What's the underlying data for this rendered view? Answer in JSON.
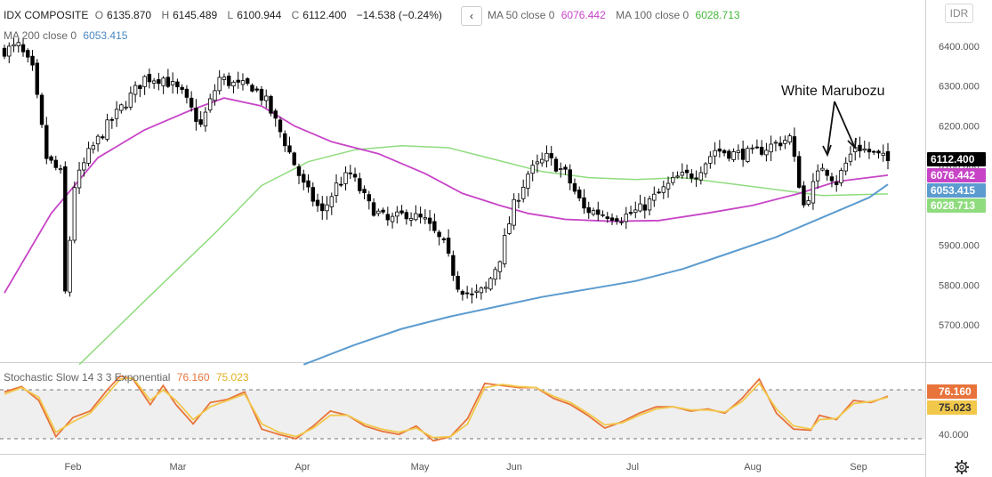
{
  "legend": {
    "symbol": "IDX COMPOSITE",
    "o_label": "O",
    "o": "6135.870",
    "h_label": "H",
    "h": "6145.489",
    "l_label": "L",
    "l": "6100.944",
    "c_label": "C",
    "c": "6112.400",
    "change": "−14.538 (−0.24%)",
    "collapse_glyph": "‹",
    "ma50_label": "MA 50 close 0",
    "ma50_value": "6076.442",
    "ma100_label": "MA 100 close 0",
    "ma100_value": "6028.713",
    "ma200_label": "MA 200 close 0",
    "ma200_value": "6053.415"
  },
  "currency_button": "IDR",
  "settings_icon": "gear-icon",
  "stoch_legend": {
    "label": "Stochastic Slow 14 3 3 Exponential",
    "k": "76.160",
    "d": "75.023"
  },
  "colors": {
    "up": "#ffffff",
    "down": "#000000",
    "ma50": "#c744c7",
    "ma100": "#8fdc7e",
    "ma200": "#5b9bcf",
    "stoch_k": "#e8743b",
    "stoch_d": "#f2c84b"
  },
  "chart_data": [
    {
      "type": "candlestick",
      "title": "IDX COMPOSITE",
      "x_axis_labels": [
        "Feb",
        "Mar",
        "Apr",
        "May",
        "Jun",
        "Jul",
        "Aug",
        "Sep"
      ],
      "ylim": [
        5600,
        6450
      ],
      "y_ticks": [
        5700,
        5800,
        5900,
        6000,
        6100,
        6200,
        6300,
        6400
      ],
      "y_tick_labels": [
        "5700.000",
        "5800.000",
        "5900.000",
        "6000.000",
        "6100.000",
        "6200.000",
        "6300.000",
        "6400.000"
      ],
      "price_labels": [
        {
          "name": "close",
          "value": 6112.4,
          "text": "6112.400",
          "color": "#000000"
        },
        {
          "name": "ma50",
          "value": 6076.442,
          "text": "6076.442",
          "color": "#c744c7"
        },
        {
          "name": "ma200",
          "value": 6053.415,
          "text": "6053.415",
          "color": "#5b9bcf"
        },
        {
          "name": "ma100",
          "value": 6028.713,
          "text": "6028.713",
          "color": "#8fdc7e"
        }
      ],
      "annotation": "White Marubozu",
      "anchors": [
        [
          0,
          6390
        ],
        [
          3,
          6400
        ],
        [
          6,
          6340
        ],
        [
          9,
          6120
        ],
        [
          12,
          6080
        ],
        [
          13,
          5780
        ],
        [
          15,
          6050
        ],
        [
          18,
          6130
        ],
        [
          22,
          6200
        ],
        [
          26,
          6260
        ],
        [
          30,
          6320
        ],
        [
          34,
          6320
        ],
        [
          38,
          6280
        ],
        [
          42,
          6200
        ],
        [
          46,
          6320
        ],
        [
          50,
          6300
        ],
        [
          53,
          6300
        ],
        [
          56,
          6260
        ],
        [
          60,
          6160
        ],
        [
          64,
          6050
        ],
        [
          68,
          5980
        ],
        [
          71,
          6050
        ],
        [
          74,
          6080
        ],
        [
          78,
          6000
        ],
        [
          82,
          5960
        ],
        [
          86,
          5980
        ],
        [
          90,
          5960
        ],
        [
          94,
          5900
        ],
        [
          97,
          5800
        ],
        [
          100,
          5770
        ],
        [
          103,
          5790
        ],
        [
          106,
          5870
        ],
        [
          109,
          6000
        ],
        [
          112,
          6080
        ],
        [
          116,
          6120
        ],
        [
          120,
          6080
        ],
        [
          124,
          5990
        ],
        [
          128,
          5980
        ],
        [
          132,
          5970
        ],
        [
          136,
          5990
        ],
        [
          140,
          6030
        ],
        [
          144,
          6070
        ],
        [
          148,
          6080
        ],
        [
          152,
          6140
        ],
        [
          156,
          6130
        ],
        [
          160,
          6130
        ],
        [
          164,
          6150
        ],
        [
          168,
          6170
        ],
        [
          171,
          6000
        ],
        [
          175,
          6100
        ],
        [
          178,
          6060
        ],
        [
          182,
          6150
        ],
        [
          186,
          6130
        ],
        [
          189,
          6112.4
        ]
      ],
      "ma50": [
        [
          0,
          5780
        ],
        [
          10,
          5980
        ],
        [
          20,
          6120
        ],
        [
          30,
          6190
        ],
        [
          40,
          6240
        ],
        [
          47,
          6270
        ],
        [
          55,
          6250
        ],
        [
          62,
          6200
        ],
        [
          70,
          6160
        ],
        [
          80,
          6130
        ],
        [
          90,
          6080
        ],
        [
          98,
          6030
        ],
        [
          106,
          6000
        ],
        [
          112,
          5980
        ],
        [
          120,
          5965
        ],
        [
          130,
          5960
        ],
        [
          140,
          5962
        ],
        [
          150,
          5980
        ],
        [
          160,
          6000
        ],
        [
          170,
          6030
        ],
        [
          178,
          6060
        ],
        [
          189,
          6076
        ]
      ],
      "ma100": [
        [
          16,
          5600
        ],
        [
          30,
          5760
        ],
        [
          45,
          5930
        ],
        [
          55,
          6050
        ],
        [
          65,
          6110
        ],
        [
          75,
          6140
        ],
        [
          85,
          6150
        ],
        [
          95,
          6145
        ],
        [
          105,
          6115
        ],
        [
          115,
          6085
        ],
        [
          125,
          6070
        ],
        [
          135,
          6065
        ],
        [
          145,
          6070
        ],
        [
          155,
          6055
        ],
        [
          165,
          6040
        ],
        [
          175,
          6025
        ],
        [
          189,
          6029
        ]
      ],
      "ma200": [
        [
          64,
          5600
        ],
        [
          75,
          5650
        ],
        [
          85,
          5690
        ],
        [
          95,
          5720
        ],
        [
          105,
          5745
        ],
        [
          115,
          5770
        ],
        [
          125,
          5790
        ],
        [
          135,
          5810
        ],
        [
          145,
          5840
        ],
        [
          155,
          5880
        ],
        [
          165,
          5920
        ],
        [
          175,
          5970
        ],
        [
          185,
          6020
        ],
        [
          189,
          6053
        ]
      ]
    },
    {
      "type": "line",
      "title": "Stochastic Slow 14 3 3 Exponential",
      "ylim": [
        20,
        100
      ],
      "y_ticks": [
        40
      ],
      "y_tick_labels": [
        "40.000"
      ],
      "bands": [
        80,
        20
      ],
      "band_lines": [
        82,
        36
      ],
      "k_value_label": "76.160",
      "d_value_label": "75.023",
      "series": [
        {
          "name": "%K",
          "color": "#e8743b",
          "anchors": [
            [
              0,
              80
            ],
            [
              4,
              85
            ],
            [
              8,
              72
            ],
            [
              12,
              38
            ],
            [
              16,
              56
            ],
            [
              20,
              62
            ],
            [
              24,
              82
            ],
            [
              27,
              95
            ],
            [
              30,
              92
            ],
            [
              34,
              68
            ],
            [
              37,
              86
            ],
            [
              40,
              68
            ],
            [
              44,
              50
            ],
            [
              48,
              70
            ],
            [
              52,
              73
            ],
            [
              56,
              80
            ],
            [
              60,
              45
            ],
            [
              64,
              40
            ],
            [
              68,
              36
            ],
            [
              72,
              48
            ],
            [
              76,
              62
            ],
            [
              80,
              58
            ],
            [
              84,
              48
            ],
            [
              88,
              43
            ],
            [
              92,
              40
            ],
            [
              96,
              48
            ],
            [
              100,
              34
            ],
            [
              104,
              38
            ],
            [
              108,
              55
            ],
            [
              112,
              88
            ],
            [
              116,
              86
            ],
            [
              120,
              84
            ],
            [
              124,
              84
            ],
            [
              128,
              74
            ],
            [
              132,
              68
            ],
            [
              136,
              58
            ],
            [
              140,
              46
            ],
            [
              144,
              52
            ],
            [
              148,
              60
            ],
            [
              152,
              66
            ],
            [
              156,
              66
            ],
            [
              160,
              62
            ],
            [
              164,
              64
            ],
            [
              168,
              60
            ],
            [
              172,
              74
            ],
            [
              176,
              92
            ],
            [
              180,
              60
            ],
            [
              184,
              45
            ],
            [
              188,
              44
            ],
            [
              190,
              58
            ],
            [
              194,
              54
            ],
            [
              198,
              72
            ],
            [
              202,
              70
            ],
            [
              206,
              76
            ]
          ]
        },
        {
          "name": "%D",
          "color": "#f2c84b",
          "anchors": [
            [
              0,
              78
            ],
            [
              4,
              84
            ],
            [
              8,
              75
            ],
            [
              12,
              42
            ],
            [
              16,
              52
            ],
            [
              20,
              60
            ],
            [
              24,
              78
            ],
            [
              27,
              92
            ],
            [
              30,
              93
            ],
            [
              34,
              72
            ],
            [
              37,
              82
            ],
            [
              40,
              72
            ],
            [
              44,
              54
            ],
            [
              48,
              66
            ],
            [
              52,
              72
            ],
            [
              56,
              78
            ],
            [
              60,
              50
            ],
            [
              64,
              42
            ],
            [
              68,
              38
            ],
            [
              72,
              46
            ],
            [
              76,
              58
            ],
            [
              80,
              58
            ],
            [
              84,
              50
            ],
            [
              88,
              45
            ],
            [
              92,
              42
            ],
            [
              96,
              46
            ],
            [
              100,
              37
            ],
            [
              104,
              38
            ],
            [
              108,
              50
            ],
            [
              112,
              84
            ],
            [
              116,
              87
            ],
            [
              120,
              85
            ],
            [
              124,
              84
            ],
            [
              128,
              76
            ],
            [
              132,
              70
            ],
            [
              136,
              60
            ],
            [
              140,
              49
            ],
            [
              144,
              51
            ],
            [
              148,
              58
            ],
            [
              152,
              64
            ],
            [
              156,
              66
            ],
            [
              160,
              63
            ],
            [
              164,
              63
            ],
            [
              168,
              61
            ],
            [
              172,
              71
            ],
            [
              176,
              88
            ],
            [
              180,
              64
            ],
            [
              184,
              48
            ],
            [
              188,
              45
            ],
            [
              190,
              54
            ],
            [
              194,
              55
            ],
            [
              198,
              69
            ],
            [
              202,
              71
            ],
            [
              206,
              75
            ]
          ]
        }
      ]
    }
  ]
}
